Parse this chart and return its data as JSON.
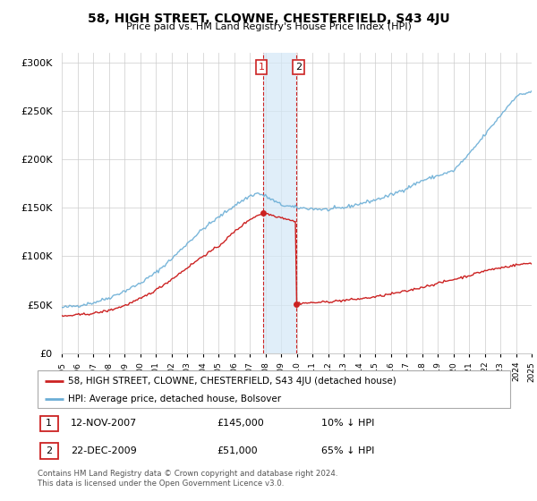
{
  "title": "58, HIGH STREET, CLOWNE, CHESTERFIELD, S43 4JU",
  "subtitle": "Price paid vs. HM Land Registry's House Price Index (HPI)",
  "legend_line1": "58, HIGH STREET, CLOWNE, CHESTERFIELD, S43 4JU (detached house)",
  "legend_line2": "HPI: Average price, detached house, Bolsover",
  "transaction1_date": "12-NOV-2007",
  "transaction1_price": "£145,000",
  "transaction1_hpi": "10% ↓ HPI",
  "transaction2_date": "22-DEC-2009",
  "transaction2_price": "£51,000",
  "transaction2_hpi": "65% ↓ HPI",
  "footnote": "Contains HM Land Registry data © Crown copyright and database right 2024.\nThis data is licensed under the Open Government Licence v3.0.",
  "hpi_color": "#6baed6",
  "price_color": "#cc2222",
  "highlight_color": "#d4e8f7",
  "highlight_alpha": 0.7,
  "ylim": [
    0,
    310000
  ],
  "yticks": [
    0,
    50000,
    100000,
    150000,
    200000,
    250000,
    300000
  ],
  "year_start": 1995,
  "year_end": 2025,
  "transaction1_year": 2007.87,
  "transaction2_year": 2009.98
}
